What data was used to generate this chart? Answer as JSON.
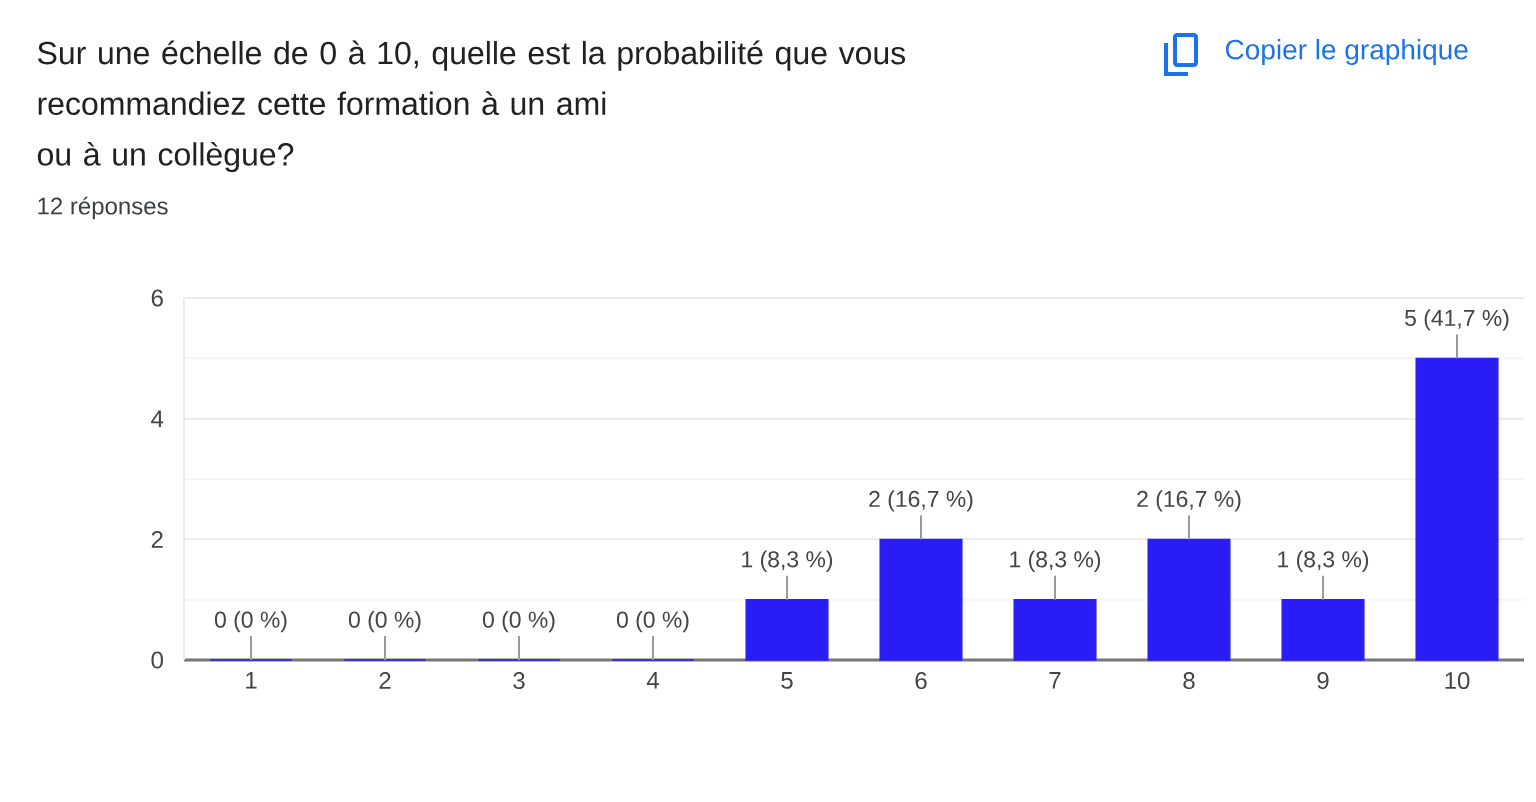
{
  "chart_data": {
    "type": "bar",
    "title": "Sur une échelle de 0 à 10, quelle est la probabilité que vous recommandiez cette formation à un ami\nou à un collègue?",
    "subtitle": "12 réponses",
    "annotations": [
      "Copier le graphique"
    ],
    "categories": [
      "1",
      "2",
      "3",
      "4",
      "5",
      "6",
      "7",
      "8",
      "9",
      "10"
    ],
    "values": [
      0,
      0,
      0,
      0,
      1,
      2,
      1,
      2,
      1,
      5
    ],
    "color": "#2a1cf5",
    "value_labels": [
      "0 (0 %)",
      "0 (0 %)",
      "0 (0 %)",
      "0 (0 %)",
      "1 (8,3 %)",
      "2 (16,7 %)",
      "1 (8,3 %)",
      "2 (16,7 %)",
      "1 (8,3 %)",
      "5 (41,7 %)"
    ],
    "ylim": [
      0,
      6
    ],
    "yticks": [
      0,
      {
        "value": 1,
        "label": null
      },
      2,
      {
        "value": 3,
        "label": null
      },
      4,
      {
        "value": 5,
        "label": null
      },
      6
    ],
    "grid": "y"
  }
}
